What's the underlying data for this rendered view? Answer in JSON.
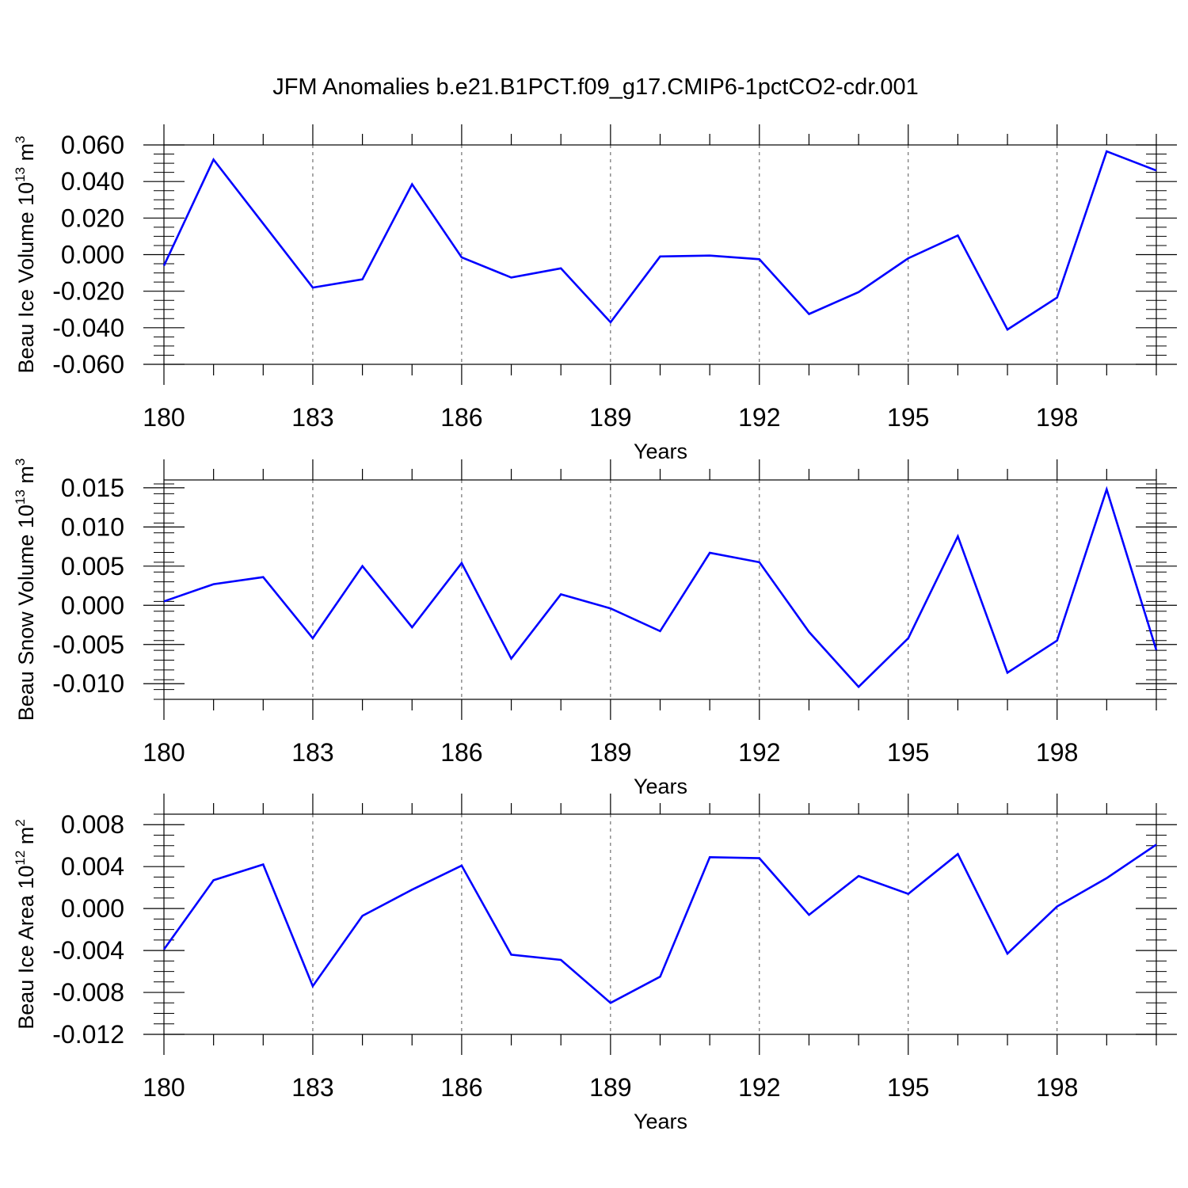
{
  "figure": {
    "title": "JFM Anomalies b.e21.B1PCT.f09_g17.CMIP6-1pctCO2-cdr.001"
  },
  "colors": {
    "series": "#0000ff",
    "axis": "#000000",
    "grid": "#555555"
  },
  "chart_data": [
    {
      "type": "line",
      "ylabel_main": "Beau Ice Volume 10",
      "ylabel_exp": "13",
      "ylabel_unit": " m",
      "ylabel_unit_exp": "3",
      "xlabel": "Years",
      "xlim": [
        180,
        200
      ],
      "ylim": [
        -0.06,
        0.06
      ],
      "xticks": [
        "180",
        "183",
        "186",
        "189",
        "192",
        "195",
        "198"
      ],
      "yticks": [
        "0.060",
        "0.040",
        "0.020",
        "0.000",
        "-0.020",
        "-0.040",
        "-0.060"
      ],
      "x_grid": "dashed vertical lines at labeled years",
      "series": [
        {
          "x": [
            180,
            181,
            182,
            183,
            184,
            185,
            186,
            187,
            188,
            189,
            190,
            191,
            192,
            193,
            194,
            195,
            196,
            197,
            198,
            199,
            200
          ],
          "values": [
            -0.006,
            0.052,
            0.017,
            -0.018,
            -0.0135,
            0.0385,
            -0.0015,
            -0.0125,
            -0.0075,
            -0.037,
            -0.001,
            -0.0005,
            -0.0025,
            -0.0325,
            -0.0205,
            -0.002,
            0.0105,
            -0.041,
            -0.0235,
            0.0565,
            0.046
          ]
        }
      ]
    },
    {
      "type": "line",
      "ylabel_main": "Beau Snow Volume 10",
      "ylabel_exp": "13",
      "ylabel_unit": " m",
      "ylabel_unit_exp": "3",
      "xlabel": "Years",
      "xlim": [
        180,
        200
      ],
      "ylim": [
        -0.012,
        0.016
      ],
      "xticks": [
        "180",
        "183",
        "186",
        "189",
        "192",
        "195",
        "198"
      ],
      "yticks": [
        "0.015",
        "0.010",
        "0.005",
        "0.000",
        "-0.005",
        "-0.010"
      ],
      "x_grid": "dashed vertical lines at labeled years",
      "series": [
        {
          "x": [
            180,
            181,
            182,
            183,
            184,
            185,
            186,
            187,
            188,
            189,
            190,
            191,
            192,
            193,
            194,
            195,
            196,
            197,
            198,
            199,
            200
          ],
          "values": [
            0.0005,
            0.0027,
            0.0036,
            -0.0042,
            0.005,
            -0.0028,
            0.0054,
            -0.0068,
            0.0014,
            -0.0004,
            -0.0033,
            0.0067,
            0.0055,
            -0.0034,
            -0.0104,
            -0.0042,
            0.0088,
            -0.0086,
            -0.0045,
            0.0148,
            -0.0057
          ]
        }
      ]
    },
    {
      "type": "line",
      "ylabel_main": "Beau Ice Area 10",
      "ylabel_exp": "12",
      "ylabel_unit": " m",
      "ylabel_unit_exp": "2",
      "xlabel": "Years",
      "xlim": [
        180,
        200
      ],
      "ylim": [
        -0.012,
        0.009
      ],
      "xticks": [
        "180",
        "183",
        "186",
        "189",
        "192",
        "195",
        "198"
      ],
      "yticks": [
        "0.008",
        "0.004",
        "0.000",
        "-0.004",
        "-0.008",
        "-0.012"
      ],
      "x_grid": "dashed vertical lines at labeled years",
      "series": [
        {
          "x": [
            180,
            181,
            182,
            183,
            184,
            185,
            186,
            187,
            188,
            189,
            190,
            191,
            192,
            193,
            194,
            195,
            196,
            197,
            198,
            199,
            200
          ],
          "values": [
            -0.0039,
            0.0027,
            0.0042,
            -0.0074,
            -0.0007,
            0.0018,
            0.0041,
            -0.0044,
            -0.0049,
            -0.009,
            -0.0065,
            0.0049,
            0.0048,
            -0.0006,
            0.0031,
            0.0014,
            0.0052,
            -0.0043,
            0.0002,
            0.0029,
            0.0061
          ]
        }
      ]
    }
  ]
}
